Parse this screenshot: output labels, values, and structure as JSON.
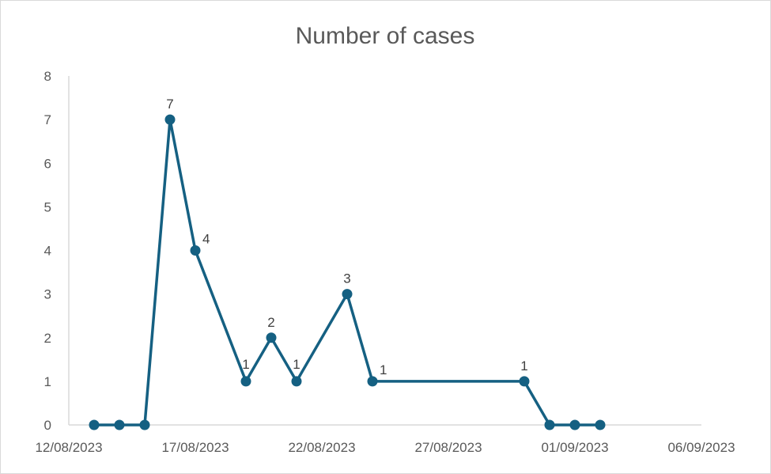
{
  "chart_data": {
    "type": "line",
    "title": "Number of cases",
    "xlabel": "",
    "ylabel": "",
    "x_axis_type": "date",
    "xlim": [
      "12/08/2023",
      "06/09/2023"
    ],
    "ylim": [
      0,
      8
    ],
    "x_ticks": [
      "12/08/2023",
      "17/08/2023",
      "22/08/2023",
      "27/08/2023",
      "01/09/2023",
      "06/09/2023"
    ],
    "y_ticks": [
      0,
      1,
      2,
      3,
      4,
      5,
      6,
      7,
      8
    ],
    "grid": false,
    "legend": "none",
    "series": [
      {
        "color": "#156082",
        "points": [
          {
            "x": "13/08/2023",
            "y": 0,
            "label": ""
          },
          {
            "x": "14/08/2023",
            "y": 0,
            "label": ""
          },
          {
            "x": "15/08/2023",
            "y": 0,
            "label": ""
          },
          {
            "x": "16/08/2023",
            "y": 7,
            "label": "7"
          },
          {
            "x": "17/08/2023",
            "y": 4,
            "label": "4"
          },
          {
            "x": "19/08/2023",
            "y": 1,
            "label": "1"
          },
          {
            "x": "20/08/2023",
            "y": 2,
            "label": "2"
          },
          {
            "x": "21/08/2023",
            "y": 1,
            "label": "1"
          },
          {
            "x": "23/08/2023",
            "y": 3,
            "label": "3"
          },
          {
            "x": "24/08/2023",
            "y": 1,
            "label": "1"
          },
          {
            "x": "30/08/2023",
            "y": 1,
            "label": "1"
          },
          {
            "x": "31/08/2023",
            "y": 0,
            "label": ""
          },
          {
            "x": "01/09/2023",
            "y": 0,
            "label": ""
          },
          {
            "x": "02/09/2023",
            "y": 0,
            "label": ""
          }
        ]
      }
    ]
  }
}
